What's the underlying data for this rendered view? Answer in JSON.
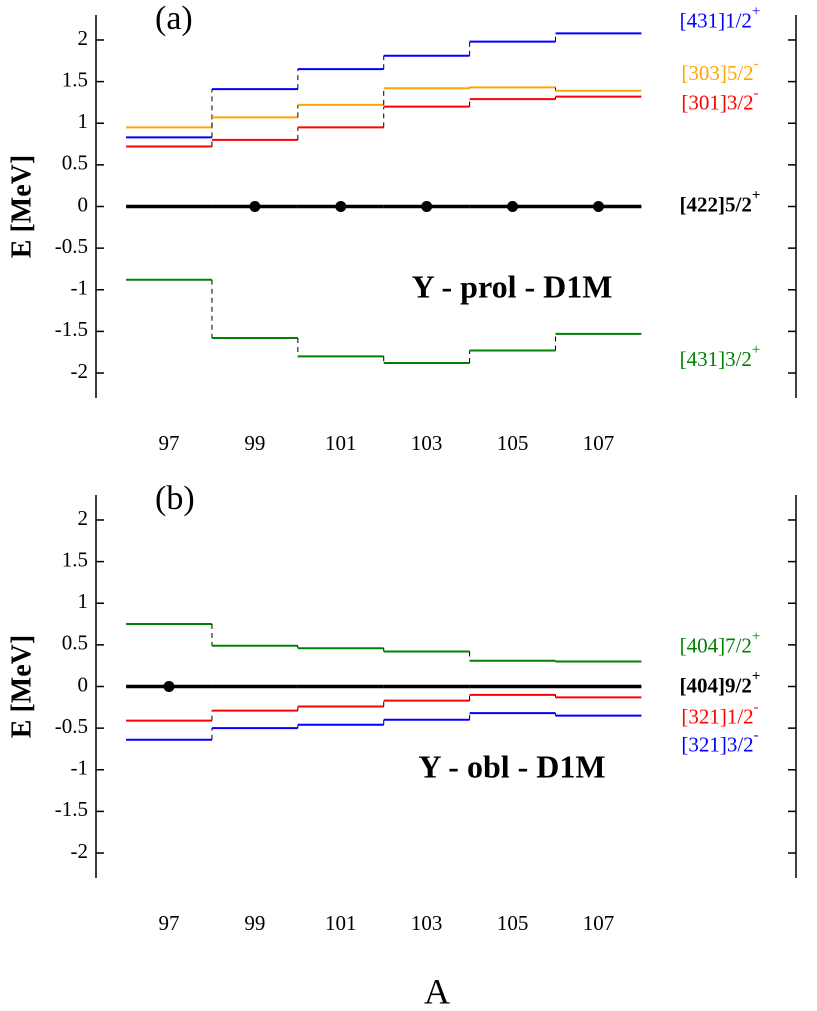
{
  "chart_data": [
    {
      "type": "level",
      "panel_label": "(a)",
      "title": "Y - prol - D1M",
      "ylabel": "E [MeV]",
      "x": [
        97,
        99,
        101,
        103,
        105,
        107
      ],
      "xticks": [
        97,
        99,
        101,
        103,
        105,
        107
      ],
      "xlim": [
        95.3,
        111.6
      ],
      "ylim": [
        -2.3,
        2.3
      ],
      "yticks": [
        2,
        1.5,
        1,
        0.5,
        0,
        -0.5,
        -1,
        -1.5,
        -2
      ],
      "series": [
        {
          "name": "[431]1/2",
          "sup": "+",
          "color": "#0000ff",
          "values": [
            0.83,
            1.41,
            1.65,
            1.81,
            1.98,
            2.08
          ]
        },
        {
          "name": "[303]5/2",
          "sup": "-",
          "color": "#ffa500",
          "values": [
            0.95,
            1.07,
            1.22,
            1.42,
            1.43,
            1.39
          ]
        },
        {
          "name": "[301]3/2",
          "sup": "-",
          "color": "#ff0000",
          "values": [
            0.72,
            0.8,
            0.95,
            1.2,
            1.29,
            1.32
          ]
        },
        {
          "name": "[422]5/2",
          "sup": "+",
          "color": "#000000",
          "bold": true,
          "values": [
            0,
            0,
            0,
            0,
            0,
            0
          ],
          "marker": [
            false,
            true,
            true,
            true,
            true,
            true
          ]
        },
        {
          "name": "[431]3/2",
          "sup": "+",
          "color": "#008000",
          "values": [
            -0.88,
            -1.58,
            -1.8,
            -1.88,
            -1.73,
            -1.53
          ]
        }
      ]
    },
    {
      "type": "level",
      "panel_label": "(b)",
      "title": "Y - obl - D1M",
      "ylabel": "E [MeV]",
      "xlabel": "A",
      "x": [
        97,
        99,
        101,
        103,
        105,
        107
      ],
      "xticks": [
        97,
        99,
        101,
        103,
        105,
        107
      ],
      "xlim": [
        95.3,
        111.6
      ],
      "ylim": [
        -2.3,
        2.3
      ],
      "yticks": [
        2,
        1.5,
        1,
        0.5,
        0,
        -0.5,
        -1,
        -1.5,
        -2
      ],
      "series": [
        {
          "name": "[404]7/2",
          "sup": "+",
          "color": "#008000",
          "values": [
            0.75,
            0.49,
            0.46,
            0.42,
            0.31,
            0.3
          ]
        },
        {
          "name": "[404]9/2",
          "sup": "+",
          "color": "#000000",
          "bold": true,
          "values": [
            0,
            0,
            0,
            0,
            0,
            0
          ],
          "marker": [
            true,
            false,
            false,
            false,
            false,
            false
          ]
        },
        {
          "name": "[321]1/2",
          "sup": "-",
          "color": "#ff0000",
          "values": [
            -0.41,
            -0.29,
            -0.24,
            -0.17,
            -0.1,
            -0.13
          ]
        },
        {
          "name": "[321]3/2",
          "sup": "-",
          "color": "#0000ff",
          "values": [
            -0.64,
            -0.5,
            -0.46,
            -0.4,
            -0.32,
            -0.35
          ]
        }
      ]
    }
  ]
}
